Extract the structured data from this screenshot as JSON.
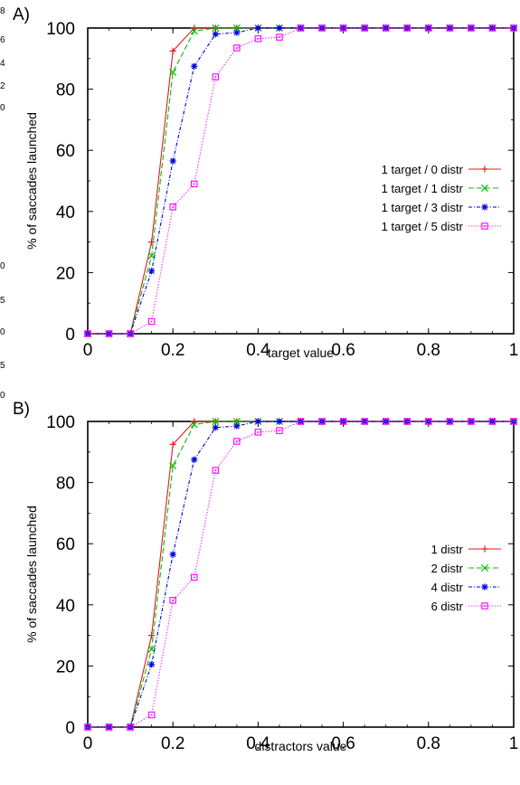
{
  "edge_fragments": [
    "8",
    "6",
    "4",
    "2",
    "0",
    "0",
    "5",
    "0",
    "5",
    "0"
  ],
  "chart_data": [
    {
      "panel_label": "A)",
      "type": "line",
      "xlabel": "target value",
      "ylabel": "% of saccades launched",
      "xlim": [
        0,
        1
      ],
      "ylim": [
        0,
        100
      ],
      "xticks": [
        "0",
        "0.2",
        "0.4",
        "0.6",
        "0.8",
        "1"
      ],
      "yticks": [
        "0",
        "20",
        "40",
        "60",
        "80",
        "100"
      ],
      "grid": false,
      "legend_position": "right-middle",
      "x": [
        0,
        0.05,
        0.1,
        0.15,
        0.2,
        0.25,
        0.3,
        0.35,
        0.4,
        0.45,
        0.5,
        0.55,
        0.6,
        0.65,
        0.7,
        0.75,
        0.8,
        0.85,
        0.9,
        0.95,
        1
      ],
      "series": [
        {
          "name": "1 target / 0 distr",
          "color": "#e41a1c",
          "dash": "solid",
          "marker": "plus",
          "values": [
            0,
            0,
            0,
            30,
            92.5,
            100,
            100,
            100,
            100,
            100,
            100,
            100,
            100,
            100,
            100,
            100,
            100,
            100,
            100,
            100,
            100
          ]
        },
        {
          "name": "1 target / 1 distr",
          "color": "#00c000",
          "dash": "dashed",
          "marker": "cross",
          "values": [
            0,
            0,
            0,
            25.5,
            85.5,
            99,
            100,
            100,
            100,
            100,
            100,
            100,
            100,
            100,
            100,
            100,
            100,
            100,
            100,
            100,
            100
          ]
        },
        {
          "name": "1 target / 3 distr",
          "color": "#0000e0",
          "dash": "dashdot",
          "marker": "star",
          "values": [
            0,
            0,
            0,
            20.5,
            56.5,
            87.5,
            98,
            98.5,
            100,
            100,
            100,
            100,
            100,
            100,
            100,
            100,
            100,
            100,
            100,
            100,
            100
          ]
        },
        {
          "name": "1 target / 5 distr",
          "color": "#ff00ff",
          "dash": "dotted",
          "marker": "square",
          "values": [
            0,
            0,
            0,
            4,
            41.5,
            49,
            84,
            93.5,
            96.5,
            97,
            100,
            100,
            100,
            100,
            100,
            100,
            100,
            100,
            100,
            100,
            100
          ]
        }
      ]
    },
    {
      "panel_label": "B)",
      "type": "line",
      "xlabel": "distractors value",
      "ylabel": "% of saccades launched",
      "xlim": [
        0,
        1
      ],
      "ylim": [
        0,
        100
      ],
      "xticks": [
        "0",
        "0.2",
        "0.4",
        "0.6",
        "0.8",
        "1"
      ],
      "yticks": [
        "0",
        "20",
        "40",
        "60",
        "80",
        "100"
      ],
      "grid": false,
      "legend_position": "right-middle",
      "x": [
        0,
        0.05,
        0.1,
        0.15,
        0.2,
        0.25,
        0.3,
        0.35,
        0.4,
        0.45,
        0.5,
        0.55,
        0.6,
        0.65,
        0.7,
        0.75,
        0.8,
        0.85,
        0.9,
        0.95,
        1
      ],
      "series": [
        {
          "name": "1 distr",
          "color": "#e41a1c",
          "dash": "solid",
          "marker": "plus",
          "values": [
            0,
            0,
            0,
            30,
            92.5,
            100,
            100,
            100,
            100,
            100,
            100,
            100,
            100,
            100,
            100,
            100,
            100,
            100,
            100,
            100,
            100
          ]
        },
        {
          "name": "2 distr",
          "color": "#00c000",
          "dash": "dashed",
          "marker": "cross",
          "values": [
            0,
            0,
            0,
            25.5,
            85.5,
            99,
            100,
            100,
            100,
            100,
            100,
            100,
            100,
            100,
            100,
            100,
            100,
            100,
            100,
            100,
            100
          ]
        },
        {
          "name": "4 distr",
          "color": "#0000e0",
          "dash": "dashdot",
          "marker": "star",
          "values": [
            0,
            0,
            0,
            20.5,
            56.5,
            87.5,
            98,
            98.5,
            100,
            100,
            100,
            100,
            100,
            100,
            100,
            100,
            100,
            100,
            100,
            100,
            100
          ]
        },
        {
          "name": "6 distr",
          "color": "#ff00ff",
          "dash": "dotted",
          "marker": "square",
          "values": [
            0,
            0,
            0,
            4,
            41.5,
            49,
            84,
            93.5,
            96.5,
            97,
            100,
            100,
            100,
            100,
            100,
            100,
            100,
            100,
            100,
            100,
            100
          ]
        }
      ]
    }
  ]
}
